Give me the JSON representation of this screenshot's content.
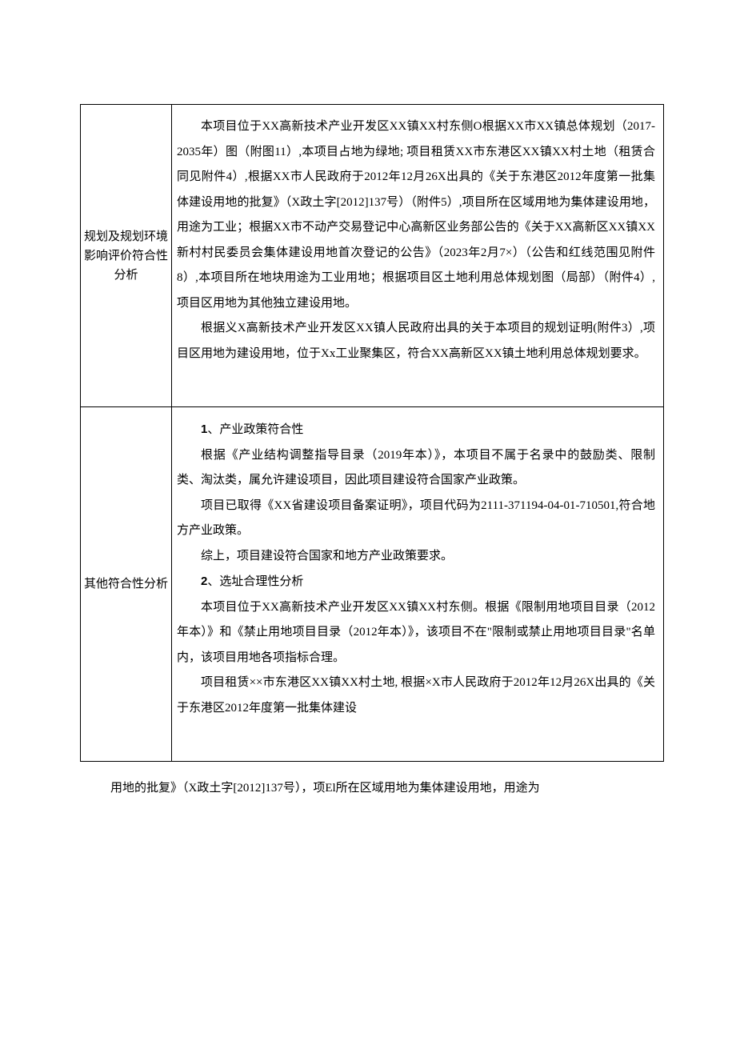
{
  "table": {
    "row1": {
      "label": "规划及规划环境\n影响评价符合性\n分析",
      "p1": "本项目位于XX高新技术产业开发区XX镇XX村东侧O根据XX市XX镇总体规划（2017-2035年）图（附图11）,本项目占地为绿地; 项目租赁XX市东港区XX镇XX村土地（租赁合同见附件4）,根据XX市人民政府于2012年12月26X出具的《关于东港区2012年度第一批集体建设用地的批复》（X政土字[2012]137号）（附件5）,项目所在区域用地为集体建设用地，用途为工业；根据XX市不动产交易登记中心高新区业务部公告的《关于XX高新区XX镇XX新村村民委员会集体建设用地首次登记的公告》（2023年2月7×）（公告和红线范围见附件8）,本项目所在地块用途为工业用地；根据项目区土地利用总体规划图（局部）（附件4）,项目区用地为其他独立建设用地。",
      "p2": "根据义X高新技术产业开发区XX镇人民政府出具的关于本项目的规划证明(附件3）,项目区用地为建设用地，位于Xx工业聚集区，符合XX高新区XX镇土地利用总体规划要求。"
    },
    "row2": {
      "label": "其他符合性分析",
      "h1_num": "1",
      "h1_text": "、产业政策符合性",
      "p1": "根据《产业结构调整指导目录（2019年本）》，本项目不属于名录中的鼓励类、限制类、淘汰类，属允许建设项目，因此项目建设符合国家产业政策。",
      "p2": "项目已取得《XX省建设项目备案证明》，项目代码为2111-371194-04-01-710501,符合地方产业政策。",
      "p3": "综上，项目建设符合国家和地方产业政策要求。",
      "h2_num": "2",
      "h2_text": "、选址合理性分析",
      "p4": "本项目位于XX高新技术产业开发区XX镇XX村东侧。根据《限制用地项目目录（2012年本）》和《禁止用地项目目录（2012年本）》，该项目不在\"限制或禁止用地项目目录\"名单内，该项目用地各项指标合理。",
      "p5": "项目租赁××市东港区XX镇XX村土地, 根据×X市人民政府于2012年12月26X出具的《关于东港区2012年度第一批集体建设"
    }
  },
  "footer": "用地的批复》（X政土字[2012]137号），项El所在区域用地为集体建设用地，用途为"
}
